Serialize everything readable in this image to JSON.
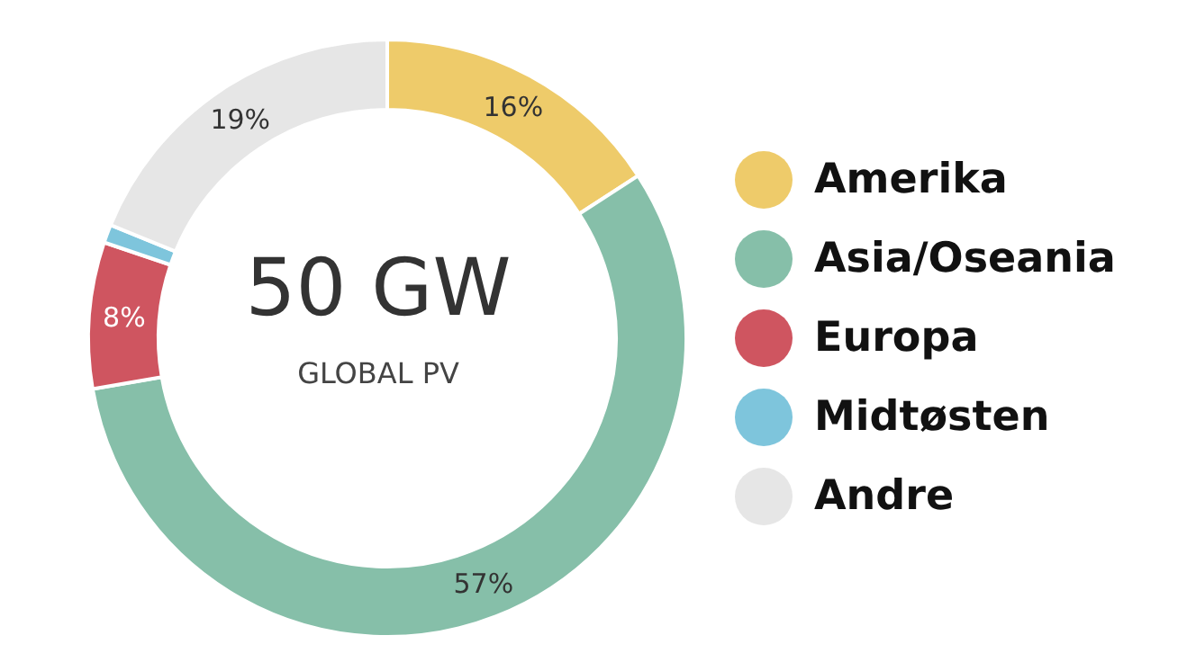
{
  "chart_data": {
    "type": "donut",
    "title": "50 GW",
    "subtitle": "GLOBAL PV",
    "categories": [
      "Amerika",
      "Asia/Oseania",
      "Europa",
      "Midtøsten",
      "Andre"
    ],
    "values": [
      16,
      57,
      8,
      1,
      19
    ],
    "colors": [
      "#eecb6a",
      "#86bfa9",
      "#cf5560",
      "#7ec5dc",
      "#e6e6e6"
    ],
    "value_labels": [
      "16%",
      "57%",
      "8%",
      null,
      "19%"
    ],
    "legend": "right"
  }
}
